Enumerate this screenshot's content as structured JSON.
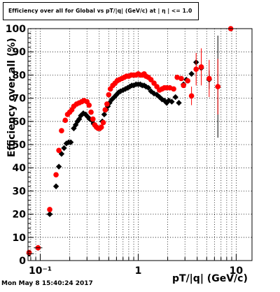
{
  "title": "Efficiency over all for Global vs pT/|q| (GeV/c) at |  η | <= 1.0",
  "timestamp": "Mon May  8 15:40:24 2017",
  "colors": {
    "series_black": "#000000",
    "series_red": "#ff0000",
    "grid": "#000000"
  },
  "chart_data": {
    "type": "scatter",
    "title": "Efficiency over all for Global vs pT/|q| (GeV/c) at |  η | <= 1.0",
    "xlabel": "pT/|q| (GeV/c)",
    "ylabel": "Efficiency over all (%)",
    "xscale": "log",
    "xlim": [
      0.075,
      14.5
    ],
    "ylim": [
      0,
      100
    ],
    "xticks": [
      {
        "value": 0.1,
        "label": "10⁻¹"
      },
      {
        "value": 1,
        "label": "1"
      },
      {
        "value": 10,
        "label": "10"
      }
    ],
    "yticks": [
      {
        "value": 0,
        "label": "0"
      },
      {
        "value": 10,
        "label": "10"
      },
      {
        "value": 20,
        "label": "20"
      },
      {
        "value": 30,
        "label": "30"
      },
      {
        "value": 40,
        "label": "40"
      },
      {
        "value": 50,
        "label": "50"
      },
      {
        "value": 60,
        "label": "60"
      },
      {
        "value": 70,
        "label": "70"
      },
      {
        "value": 80,
        "label": "80"
      },
      {
        "value": 90,
        "label": "90"
      },
      {
        "value": 100,
        "label": "100"
      }
    ],
    "grid": true,
    "series": [
      {
        "marker": "diamond",
        "color": "#000000",
        "points": [
          [
            0.077,
            3
          ],
          [
            0.095,
            5.5
          ],
          [
            0.125,
            20
          ],
          [
            0.145,
            32
          ],
          [
            0.155,
            40.5
          ],
          [
            0.165,
            46
          ],
          [
            0.175,
            48.5
          ],
          [
            0.185,
            50.5
          ],
          [
            0.195,
            51
          ],
          [
            0.205,
            51
          ],
          [
            0.22,
            57
          ],
          [
            0.23,
            58.5
          ],
          [
            0.24,
            60
          ],
          [
            0.25,
            61
          ],
          [
            0.26,
            62.5
          ],
          [
            0.275,
            63.5
          ],
          [
            0.29,
            63
          ],
          [
            0.305,
            62
          ],
          [
            0.32,
            61
          ],
          [
            0.335,
            60.5
          ],
          [
            0.35,
            59
          ],
          [
            0.365,
            58
          ],
          [
            0.38,
            57.5
          ],
          [
            0.395,
            57
          ],
          [
            0.41,
            57
          ],
          [
            0.43,
            60
          ],
          [
            0.45,
            63
          ],
          [
            0.47,
            65
          ],
          [
            0.49,
            66.5
          ],
          [
            0.51,
            68
          ],
          [
            0.54,
            69.5
          ],
          [
            0.57,
            70.5
          ],
          [
            0.6,
            71.5
          ],
          [
            0.63,
            72.5
          ],
          [
            0.66,
            73
          ],
          [
            0.7,
            73.5
          ],
          [
            0.74,
            74
          ],
          [
            0.78,
            74.5
          ],
          [
            0.82,
            75
          ],
          [
            0.86,
            75.5
          ],
          [
            0.9,
            75.5
          ],
          [
            0.95,
            76
          ],
          [
            1.0,
            76
          ],
          [
            1.05,
            76
          ],
          [
            1.1,
            75.5
          ],
          [
            1.15,
            75.5
          ],
          [
            1.2,
            75
          ],
          [
            1.27,
            74.5
          ],
          [
            1.35,
            73
          ],
          [
            1.45,
            72
          ],
          [
            1.55,
            71.5
          ],
          [
            1.65,
            70.5
          ],
          [
            1.75,
            69.5
          ],
          [
            1.85,
            69
          ],
          [
            1.95,
            68
          ],
          [
            2.05,
            69
          ],
          [
            2.2,
            68.5
          ],
          [
            2.4,
            70.5
          ],
          [
            2.6,
            68
          ],
          [
            2.9,
            76
          ],
          [
            3.1,
            78
          ],
          [
            3.5,
            80.5
          ],
          [
            3.9,
            85.5
          ],
          [
            4.4,
            83
          ],
          [
            5.3,
            78
          ],
          [
            6.5,
            75
          ]
        ],
        "errors": [
          [
            5.3,
            4
          ],
          [
            6.5,
            22
          ]
        ]
      },
      {
        "marker": "circle",
        "color": "#ff0000",
        "points": [
          [
            0.077,
            3.5
          ],
          [
            0.095,
            5.5
          ],
          [
            0.125,
            22
          ],
          [
            0.145,
            37
          ],
          [
            0.155,
            47.5
          ],
          [
            0.165,
            56
          ],
          [
            0.18,
            60.5
          ],
          [
            0.19,
            63
          ],
          [
            0.2,
            64
          ],
          [
            0.21,
            65
          ],
          [
            0.22,
            66.5
          ],
          [
            0.235,
            67.5
          ],
          [
            0.25,
            68
          ],
          [
            0.265,
            68.5
          ],
          [
            0.28,
            69
          ],
          [
            0.3,
            68.5
          ],
          [
            0.315,
            67
          ],
          [
            0.33,
            64
          ],
          [
            0.345,
            61
          ],
          [
            0.36,
            58.5
          ],
          [
            0.375,
            57.5
          ],
          [
            0.39,
            57
          ],
          [
            0.405,
            57
          ],
          [
            0.42,
            57.5
          ],
          [
            0.44,
            59.5
          ],
          [
            0.46,
            65
          ],
          [
            0.48,
            67.5
          ],
          [
            0.5,
            71.5
          ],
          [
            0.52,
            74
          ],
          [
            0.55,
            75.5
          ],
          [
            0.58,
            76.5
          ],
          [
            0.61,
            77.5
          ],
          [
            0.64,
            78
          ],
          [
            0.68,
            78.5
          ],
          [
            0.72,
            79
          ],
          [
            0.76,
            79.5
          ],
          [
            0.8,
            79.5
          ],
          [
            0.85,
            80
          ],
          [
            0.9,
            80
          ],
          [
            0.95,
            80
          ],
          [
            1.0,
            80.5
          ],
          [
            1.05,
            80
          ],
          [
            1.1,
            80
          ],
          [
            1.15,
            80.5
          ],
          [
            1.2,
            79.5
          ],
          [
            1.27,
            79
          ],
          [
            1.35,
            78
          ],
          [
            1.45,
            76.5
          ],
          [
            1.55,
            75
          ],
          [
            1.65,
            73.5
          ],
          [
            1.75,
            74
          ],
          [
            1.85,
            74.5
          ],
          [
            1.95,
            74.5
          ],
          [
            2.1,
            74.5
          ],
          [
            2.3,
            74
          ],
          [
            2.5,
            79
          ],
          [
            2.75,
            78.5
          ],
          [
            2.9,
            75.5
          ],
          [
            3.2,
            77.5
          ],
          [
            3.5,
            71
          ],
          [
            3.9,
            82.5
          ],
          [
            4.4,
            83.5
          ],
          [
            5.3,
            78.5
          ],
          [
            6.5,
            75
          ],
          [
            8.8,
            100
          ]
        ],
        "errors": [
          [
            3.5,
            4
          ],
          [
            3.9,
            7
          ],
          [
            4.4,
            8
          ],
          [
            5.3,
            8
          ],
          [
            6.5,
            12
          ]
        ]
      }
    ]
  }
}
